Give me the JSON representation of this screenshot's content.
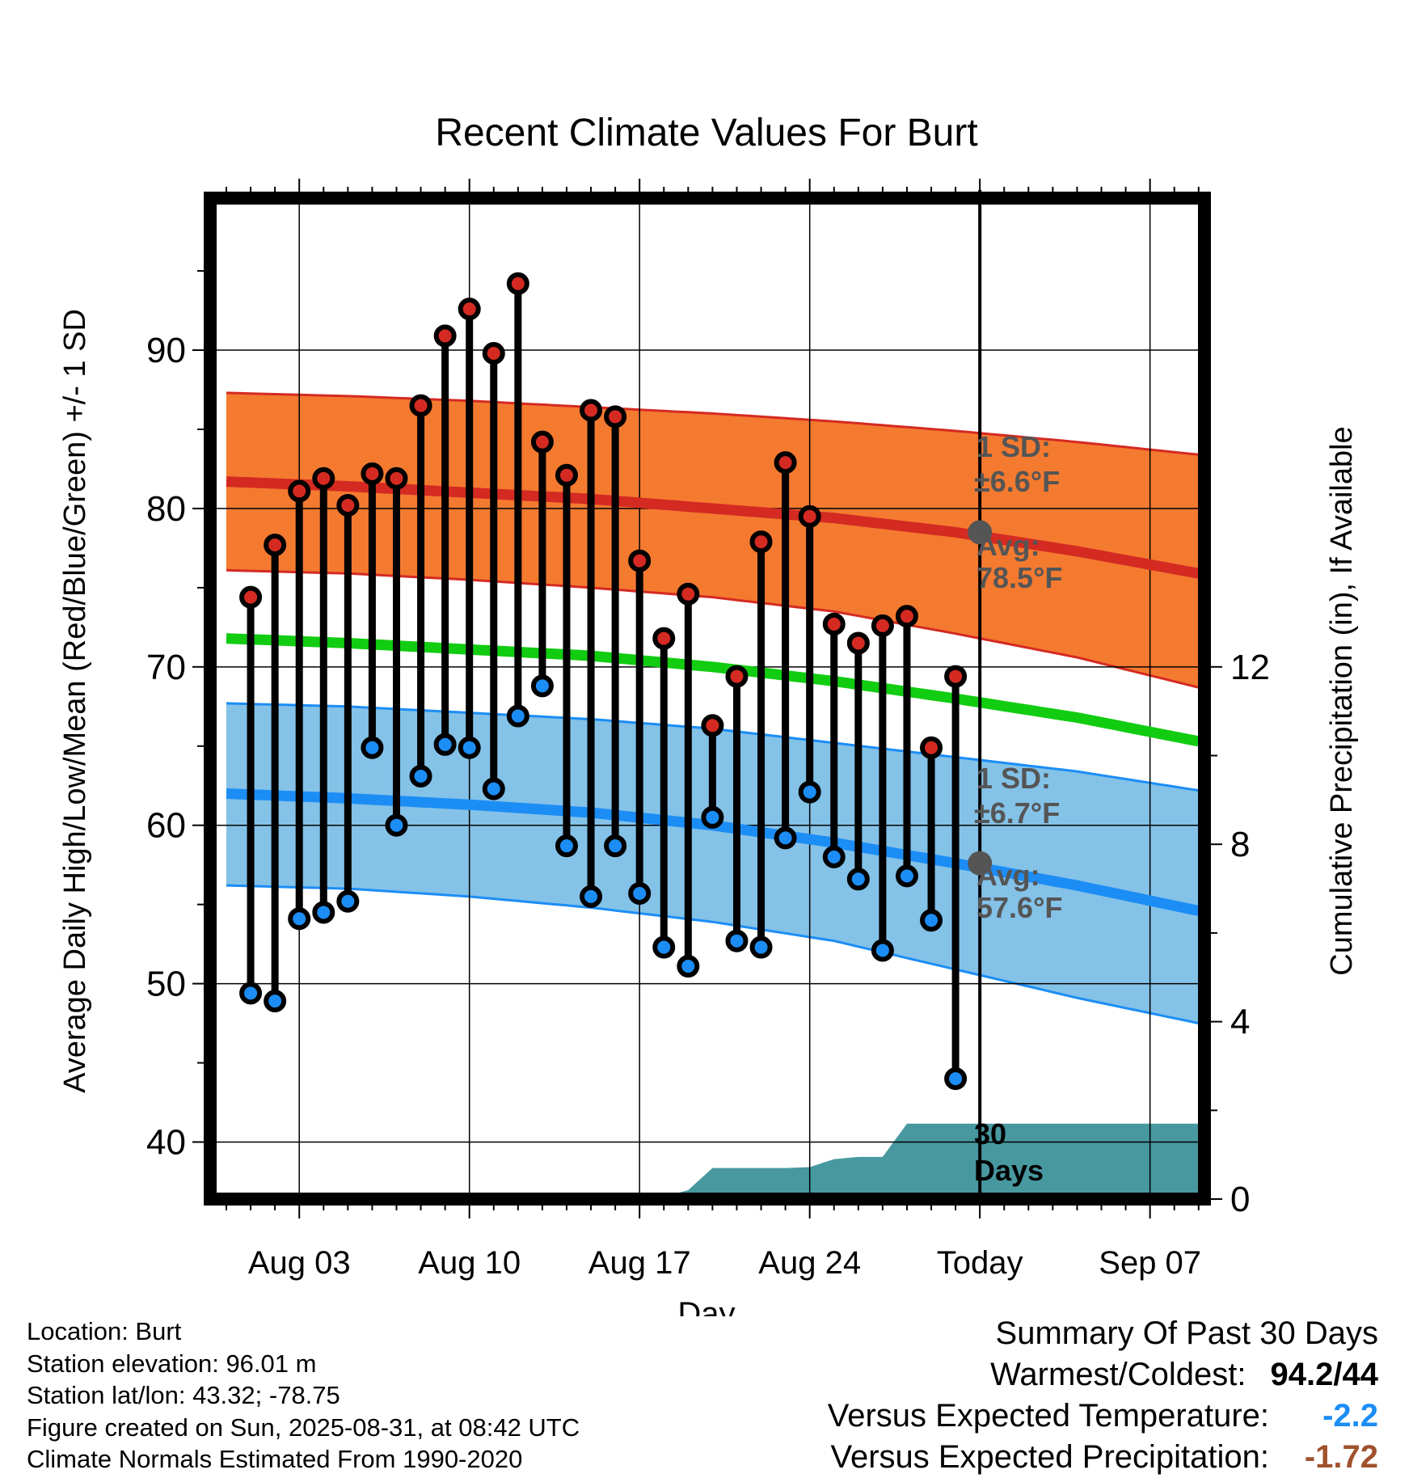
{
  "chart_data": {
    "type": "line",
    "title": "Recent Climate Values For Burt",
    "xlabel": "Day",
    "ylabel": "Average Daily High/Low/Mean (Red/Blue/Green) +/- 1 SD",
    "y2label": "Cumulative Precipitation (in), If Available",
    "x_ticks": [
      "Aug 03",
      "Aug 10",
      "Aug 17",
      "Aug 24",
      "Today",
      "Sep 07"
    ],
    "y_ticks": [
      40,
      50,
      60,
      70,
      80,
      90
    ],
    "y2_ticks": [
      0,
      4,
      8,
      12
    ],
    "ylim": [
      36.4,
      99.6
    ],
    "y2lim": [
      0,
      12
    ],
    "grid": true,
    "daily_high": [
      74.4,
      77.7,
      81.1,
      81.9,
      80.2,
      82.2,
      81.9,
      86.5,
      90.9,
      92.6,
      89.8,
      94.2,
      84.2,
      82.1,
      86.2,
      85.8,
      76.7,
      71.8,
      74.6,
      66.3,
      69.4,
      77.9,
      82.9,
      79.5,
      72.7,
      71.5,
      72.6,
      73.2,
      64.9,
      69.4
    ],
    "daily_low": [
      49.4,
      48.9,
      54.1,
      54.5,
      55.2,
      64.9,
      60.0,
      63.1,
      65.1,
      64.9,
      62.3,
      66.9,
      68.8,
      58.7,
      55.5,
      58.7,
      55.7,
      52.3,
      51.1,
      60.5,
      52.7,
      52.3,
      59.2,
      62.1,
      58.0,
      56.6,
      52.1,
      56.8,
      54.0,
      44.0
    ],
    "normal_high": {
      "day_index": [
        0,
        5,
        10,
        15,
        20,
        25,
        30,
        35,
        40
      ],
      "mean": [
        81.7,
        81.4,
        81.0,
        80.6,
        80.0,
        79.4,
        78.5,
        77.3,
        75.9
      ],
      "upper": [
        87.3,
        87.1,
        86.8,
        86.4,
        86.0,
        85.5,
        84.9,
        84.2,
        83.4
      ],
      "lower": [
        76.1,
        75.9,
        75.5,
        75.0,
        74.4,
        73.5,
        72.1,
        70.6,
        68.7
      ]
    },
    "normal_low": {
      "day_index": [
        0,
        5,
        10,
        15,
        20,
        25,
        30,
        35,
        40
      ],
      "mean": [
        62.0,
        61.7,
        61.3,
        60.8,
        60.0,
        58.9,
        57.6,
        56.2,
        54.6
      ],
      "upper": [
        67.7,
        67.5,
        67.1,
        66.7,
        66.1,
        65.2,
        64.3,
        63.4,
        62.2
      ],
      "lower": [
        56.2,
        56.0,
        55.5,
        54.8,
        53.9,
        52.7,
        50.9,
        49.1,
        47.5
      ]
    },
    "normal_mean": {
      "day_index": [
        0,
        5,
        10,
        15,
        20,
        25,
        30,
        35,
        40
      ],
      "values": [
        71.8,
        71.5,
        71.1,
        70.7,
        70.0,
        69.1,
        68.0,
        66.8,
        65.3
      ]
    },
    "cumulative_precip": {
      "day_index": [
        17,
        18,
        19,
        20,
        21,
        22,
        23,
        24,
        25,
        26,
        27,
        28,
        29,
        30,
        40
      ],
      "values": [
        0.0,
        0.05,
        0.2,
        0.7,
        0.7,
        0.7,
        0.7,
        0.72,
        0.9,
        0.95,
        0.95,
        1.7,
        1.7,
        1.7,
        1.7
      ]
    },
    "annotations": {
      "high_sd_l1": "1 SD:",
      "high_sd_l2": "±6.6°F",
      "high_avg_l1": "Avg:",
      "high_avg_l2": "78.5°F",
      "low_sd_l1": "1 SD:",
      "low_sd_l2": "±6.7°F",
      "low_avg_l1": "Avg:",
      "low_avg_l2": "57.6°F",
      "period_l1": "30",
      "period_l2": "Days"
    },
    "colors": {
      "high_band": "#f47a30",
      "high_line": "#d42a22",
      "low_band": "#84c2e8",
      "low_line": "#1c8df5",
      "mean_line": "#11cc11",
      "precip": "#4898a0",
      "high_marker": "#d42a22",
      "low_marker": "#1c8df5",
      "today_marker": "#555555"
    }
  },
  "info": {
    "location": "Location: Burt",
    "elevation": "Station elevation: 96.01 m",
    "latlon": "Station lat/lon: 43.32; -78.75",
    "created": "Figure created on Sun, 2025-08-31, at 08:42 UTC",
    "normals": "Climate Normals Estimated From 1990-2020"
  },
  "summary": {
    "title": "Summary Of Past 30 Days",
    "warmest_coldest_label": "Warmest/Coldest:",
    "warmest_coldest_value": "94.2/44",
    "temp_label": "Versus Expected Temperature:",
    "temp_value": "-2.2",
    "temp_color": "#1c8df5",
    "precip_label": "Versus Expected Precipitation:",
    "precip_value": "-1.72",
    "precip_color": "#a0522d"
  }
}
